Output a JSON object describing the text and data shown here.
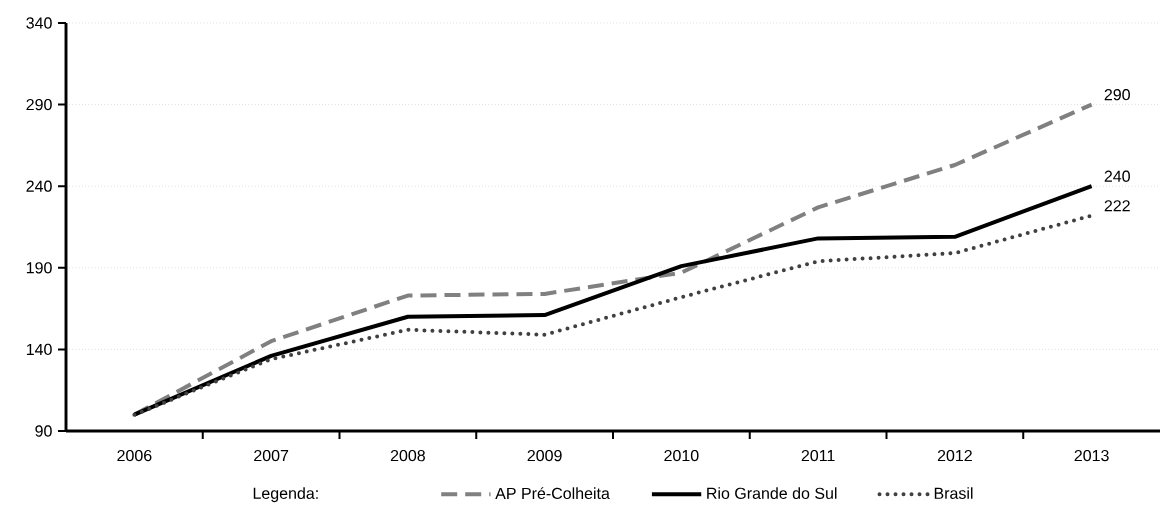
{
  "chart_data": {
    "type": "line",
    "categories": [
      "2006",
      "2007",
      "2008",
      "2009",
      "2010",
      "2011",
      "2012",
      "2013"
    ],
    "series": [
      {
        "name": "AP Pré-Colheita",
        "color": "#808080",
        "line_style": "dashed",
        "values": [
          100,
          145,
          173,
          174,
          187,
          227,
          253,
          290
        ]
      },
      {
        "name": "Rio Grande do Sul",
        "color": "#000000",
        "line_style": "solid",
        "values": [
          100,
          136,
          160,
          161,
          191,
          208,
          209,
          240
        ]
      },
      {
        "name": "Brasil",
        "color": "#404040",
        "line_style": "dotted",
        "values": [
          100,
          134,
          152,
          149,
          172,
          194,
          199,
          222
        ]
      }
    ],
    "ylim": [
      90,
      340
    ],
    "yticks": [
      90,
      140,
      190,
      240,
      290,
      340
    ],
    "grid": "y",
    "legend": "bottom",
    "legend_title": "Legenda:",
    "marker": "none",
    "annotations": [
      {
        "text": "290",
        "x": "2013",
        "y": 290
      },
      {
        "text": "240",
        "x": "2013",
        "y": 240
      },
      {
        "text": "222",
        "x": "2013",
        "y": 222
      }
    ]
  }
}
